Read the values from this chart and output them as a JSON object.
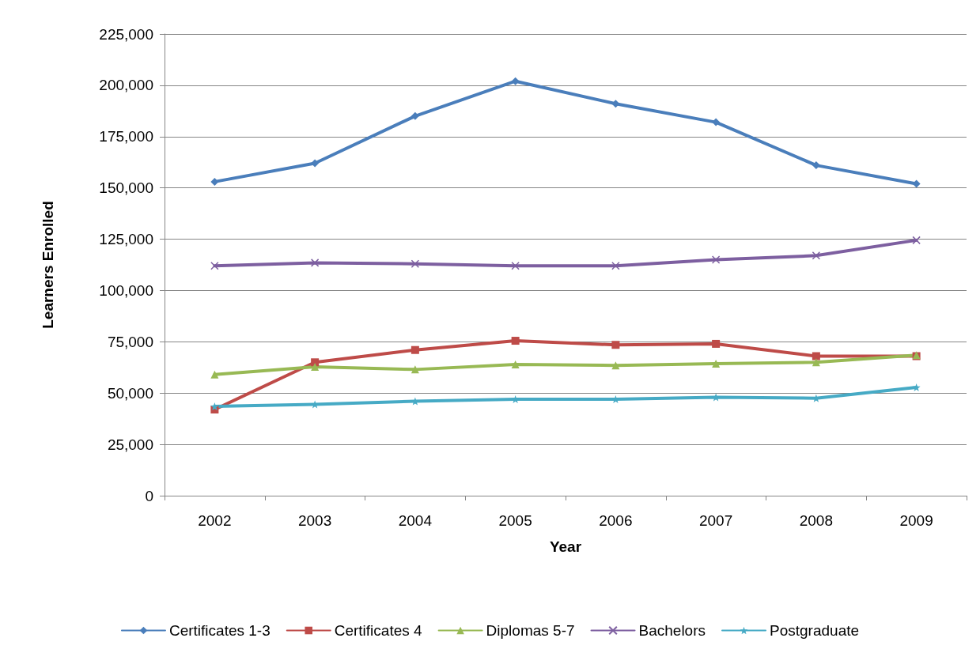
{
  "chart_data": {
    "type": "line",
    "xlabel": "Year",
    "ylabel": "Learners Enrolled",
    "categories": [
      "2002",
      "2003",
      "2004",
      "2005",
      "2006",
      "2007",
      "2008",
      "2009"
    ],
    "series": [
      {
        "name": "Certificates 1-3",
        "color": "#4a7ebb",
        "marker": "diamond",
        "values": [
          153000,
          162000,
          185000,
          202000,
          191000,
          182000,
          161000,
          152000
        ]
      },
      {
        "name": "Certificates 4",
        "color": "#be4b48",
        "marker": "square",
        "values": [
          42000,
          65000,
          71000,
          75500,
          73500,
          74000,
          68000,
          68000
        ]
      },
      {
        "name": "Diplomas 5-7",
        "color": "#98b954",
        "marker": "triangle",
        "values": [
          59000,
          62800,
          61500,
          64000,
          63500,
          64300,
          65000,
          68500
        ]
      },
      {
        "name": "Bachelors",
        "color": "#7d5fa0",
        "marker": "cross",
        "values": [
          112000,
          113500,
          113000,
          112000,
          112000,
          115000,
          117000,
          124500
        ]
      },
      {
        "name": "Postgraduate",
        "color": "#46aac5",
        "marker": "star",
        "values": [
          43500,
          44500,
          46000,
          47000,
          47000,
          48000,
          47500,
          52800
        ]
      }
    ],
    "ylim": [
      0,
      225000
    ],
    "yticks": [
      0,
      {
        "value": 25000,
        "label": "25,000"
      },
      {
        "value": 50000,
        "label": "50,000"
      },
      {
        "value": 75000,
        "label": "75,000"
      },
      {
        "value": 100000,
        "label": "100,000"
      },
      {
        "value": 125000,
        "label": "125,000"
      },
      {
        "value": 150000,
        "label": "150,000"
      },
      {
        "value": 175000,
        "label": "175,000"
      },
      {
        "value": 200000,
        "label": "200,000"
      },
      {
        "value": 225000,
        "label": "225,000"
      }
    ],
    "grid": "y",
    "legend": "bottom",
    "line_style": "solid"
  }
}
